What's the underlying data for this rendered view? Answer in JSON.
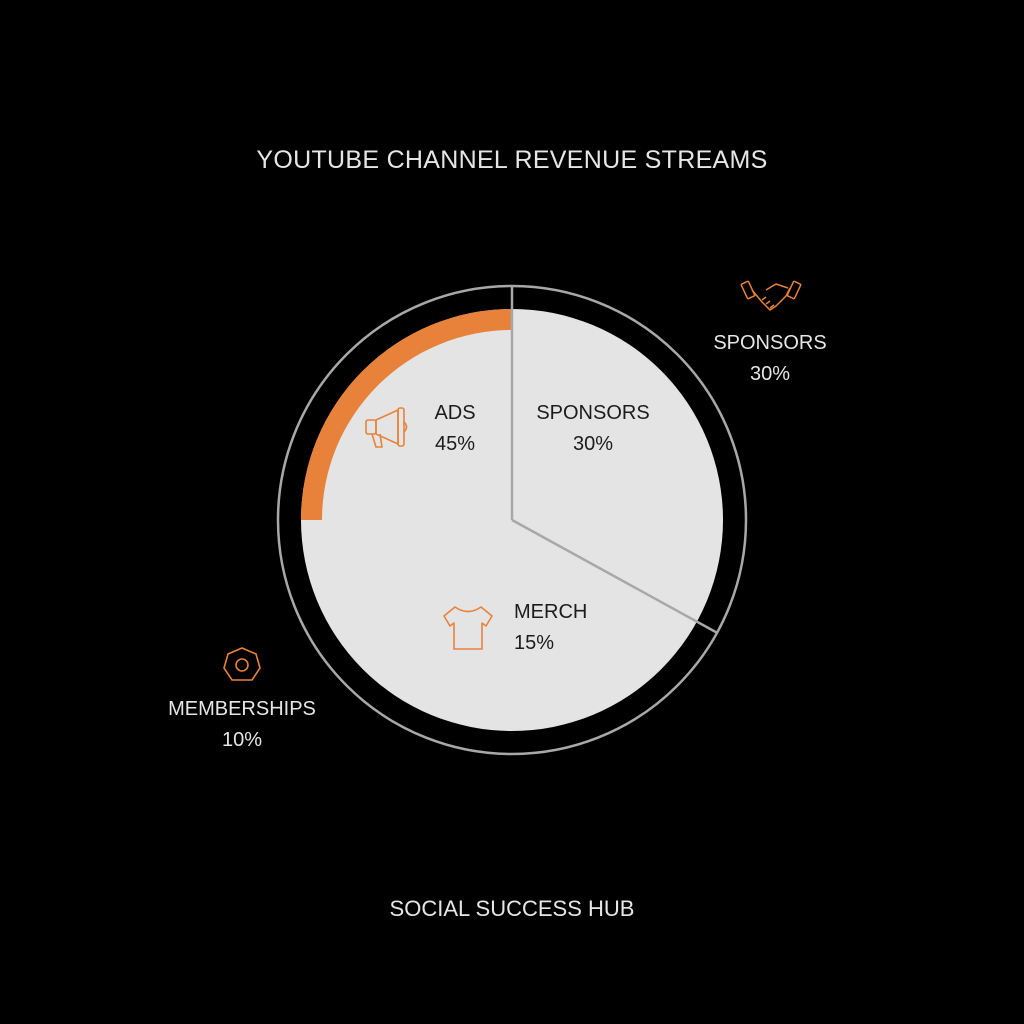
{
  "chart_data": {
    "type": "pie",
    "title": "YOUTUBE CHANNEL REVENUE STREAMS",
    "slices": [
      {
        "label": "ADS",
        "value": 45,
        "display": "45%",
        "icon": "megaphone-icon"
      },
      {
        "label": "SPONSORS",
        "value": 30,
        "display": "30%",
        "icon": "handshake-icon"
      },
      {
        "label": "MERCH",
        "value": 15,
        "display": "15%",
        "icon": "tshirt-icon"
      },
      {
        "label": "MEMBERSHIPS",
        "value": 10,
        "display": "10%",
        "icon": "badge-icon"
      }
    ],
    "colors": {
      "background": "#000000",
      "pie_fill": "#e4e4e4",
      "accent": "#e8823a",
      "outline": "#a8a8a8",
      "text_light": "#e6e6e6",
      "text_dark": "#1c1c1c"
    }
  },
  "footer": "SOCIAL SUCCESS HUB"
}
